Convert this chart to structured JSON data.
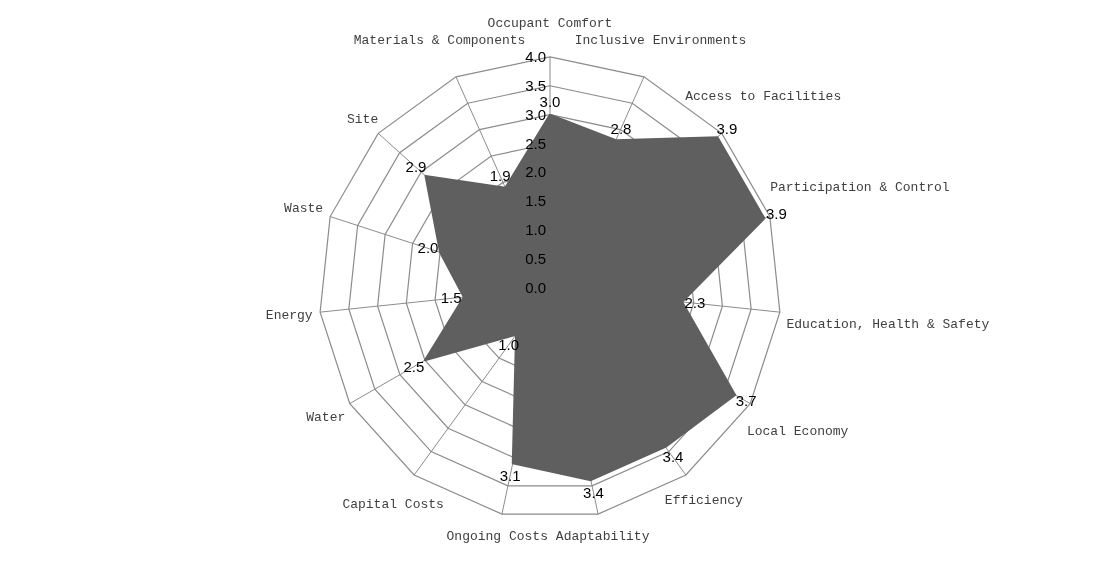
{
  "chart_data": {
    "type": "radar",
    "categories": [
      "Occupant Comfort",
      "Inclusive Environments",
      "Access to Facilities",
      "Participation & Control",
      "Education, Health & Safety",
      "Local Economy",
      "Efficiency",
      "Adaptability",
      "Ongoing Costs",
      "Capital Costs",
      "Water",
      "Energy",
      "Waste",
      "Site",
      "Materials & Components"
    ],
    "series": [
      {
        "color": "#5f5f5f",
        "values": [
          3.0,
          2.8,
          3.9,
          3.9,
          2.3,
          3.7,
          3.4,
          3.4,
          3.1,
          1.0,
          2.5,
          1.5,
          2.0,
          2.9,
          1.9
        ],
        "value_labels": [
          "3.0",
          "2.8",
          "3.9",
          "3.9",
          "2.3",
          "3.7",
          "3.4",
          "3.4",
          "3.1",
          "1.0",
          "2.5",
          "1.5",
          "2.0",
          "2.9",
          "1.9"
        ]
      }
    ],
    "ylim": [
      0,
      4
    ],
    "yticks": [
      {
        "value": 0,
        "label": "0.0"
      },
      {
        "value": 0.5,
        "label": "0.5"
      },
      {
        "value": 1,
        "label": "1.0"
      },
      {
        "value": 1.5,
        "label": "1.5"
      },
      {
        "value": 2,
        "label": "2.0"
      },
      {
        "value": 2.5,
        "label": "2.5"
      },
      {
        "value": 3,
        "label": "3.0"
      },
      {
        "value": 3.5,
        "label": "3.5"
      },
      {
        "value": 4,
        "label": "4.0"
      }
    ],
    "grid": true
  }
}
